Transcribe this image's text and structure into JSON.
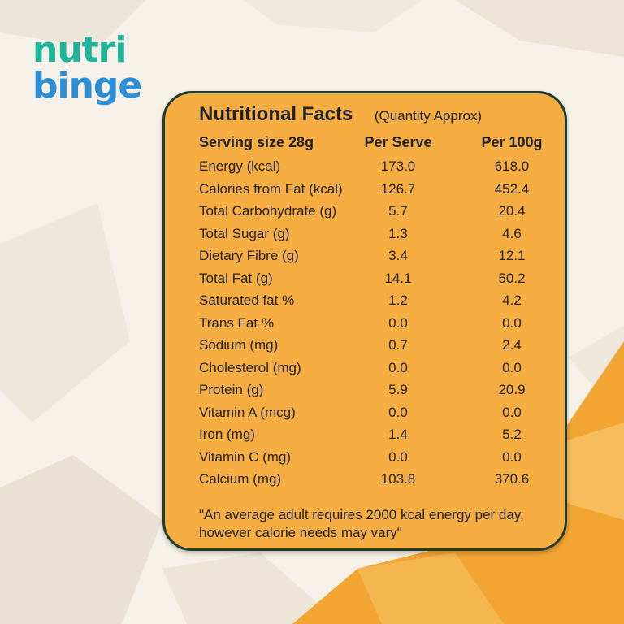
{
  "brand": {
    "line1": "nutri",
    "line2": "binge"
  },
  "colors": {
    "card": "#f6ae43",
    "card_border": "#1f3d2a",
    "logo_teal": "#1fb59a",
    "logo_blue": "#2c8fd6",
    "accent_orange": "#f2a533"
  },
  "panel": {
    "title": "Nutritional Facts",
    "subtitle": "(Quantity Approx)",
    "headers": {
      "serving": "Serving size 28g",
      "per_serve": "Per Serve",
      "per_100g": "Per 100g"
    },
    "rows": [
      {
        "label": "Energy (kcal)",
        "per_serve": "173.0",
        "per_100g": "618.0"
      },
      {
        "label": "Calories from Fat (kcal)",
        "per_serve": "126.7",
        "per_100g": "452.4"
      },
      {
        "label": "Total Carbohydrate (g)",
        "per_serve": "5.7",
        "per_100g": "20.4"
      },
      {
        "label": "Total Sugar (g)",
        "per_serve": "1.3",
        "per_100g": "4.6"
      },
      {
        "label": "Dietary Fibre (g)",
        "per_serve": "3.4",
        "per_100g": "12.1"
      },
      {
        "label": "Total Fat (g)",
        "per_serve": "14.1",
        "per_100g": "50.2"
      },
      {
        "label": "Saturated fat %",
        "per_serve": "1.2",
        "per_100g": "4.2"
      },
      {
        "label": "Trans Fat %",
        "per_serve": "0.0",
        "per_100g": "0.0"
      },
      {
        "label": "Sodium (mg)",
        "per_serve": "0.7",
        "per_100g": "2.4"
      },
      {
        "label": "Cholesterol (mg)",
        "per_serve": "0.0",
        "per_100g": "0.0"
      },
      {
        "label": "Protein (g)",
        "per_serve": "5.9",
        "per_100g": "20.9"
      },
      {
        "label": "Vitamin A (mcg)",
        "per_serve": "0.0",
        "per_100g": "0.0"
      },
      {
        "label": "Iron (mg)",
        "per_serve": "1.4",
        "per_100g": "5.2"
      },
      {
        "label": "Vitamin C (mg)",
        "per_serve": "0.0",
        "per_100g": "0.0"
      },
      {
        "label": "Calcium (mg)",
        "per_serve": "103.8",
        "per_100g": "370.6"
      }
    ],
    "note": "\"An average adult requires 2000 kcal energy per day, however calorie needs may vary\""
  }
}
